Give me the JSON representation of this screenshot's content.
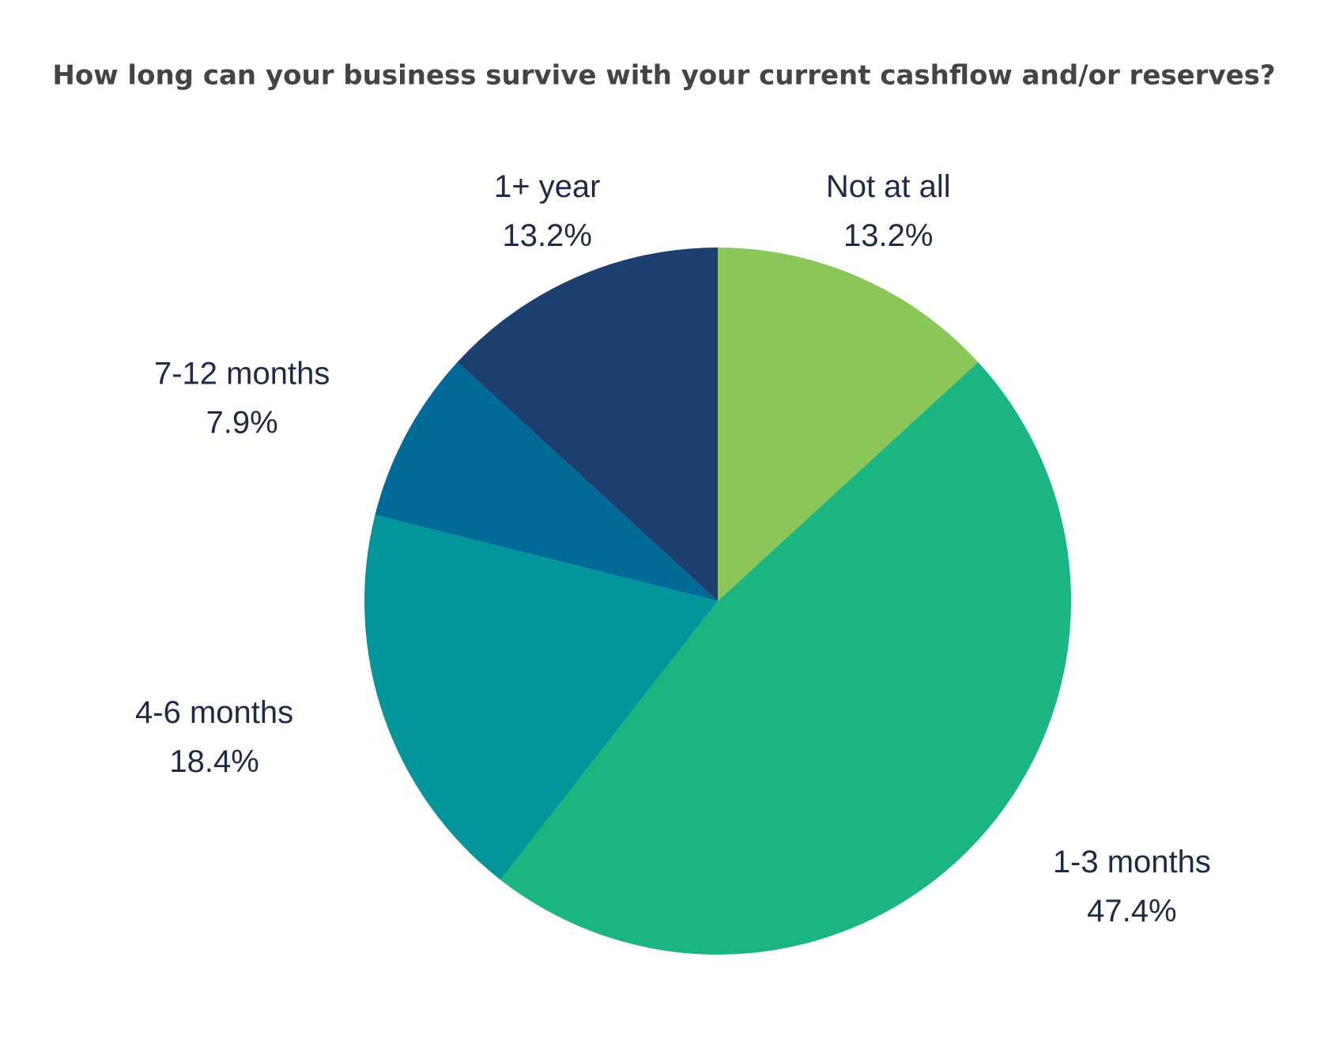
{
  "chart_data": {
    "type": "pie",
    "title": "How long can your business survive with your current cashflow and/or reserves?",
    "categories": [
      "Not at all",
      "1-3 months",
      "4-6 months",
      "7-12 months",
      "1+ year"
    ],
    "values": [
      13.2,
      47.4,
      18.4,
      7.9,
      13.2
    ],
    "value_labels": [
      "13.2%",
      "47.4%",
      "18.4%",
      "7.9%",
      "13.2%"
    ],
    "colors": [
      "#8bc65a",
      "#1bb57f",
      "#02959a",
      "#026a99",
      "#1b3f6e"
    ]
  }
}
